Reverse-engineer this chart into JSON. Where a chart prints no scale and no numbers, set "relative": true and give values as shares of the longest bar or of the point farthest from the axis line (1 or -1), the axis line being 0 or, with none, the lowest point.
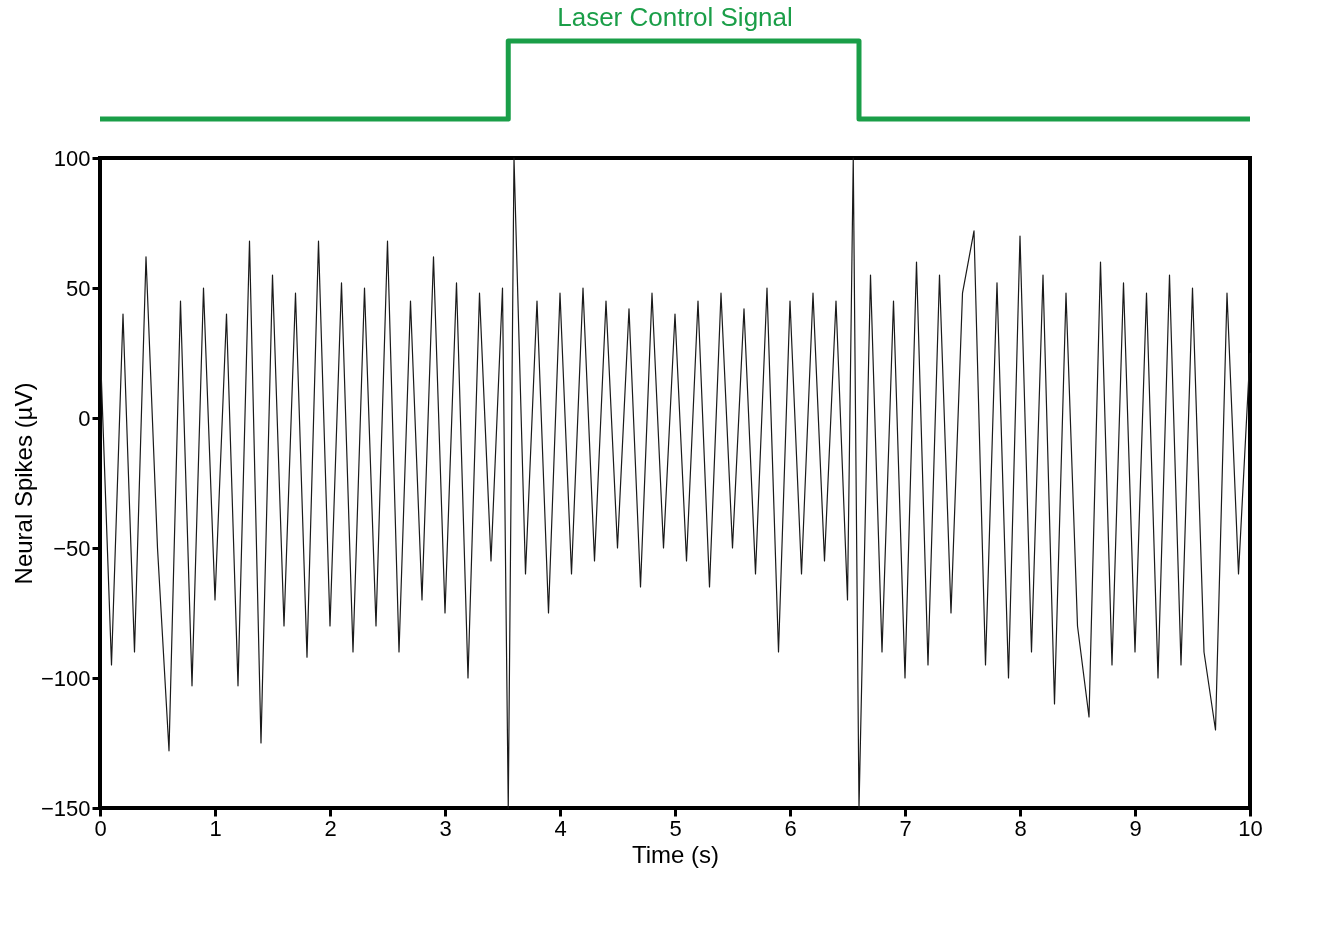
{
  "chart_data": [
    {
      "type": "step",
      "title": "Laser Control Signal",
      "relative": true,
      "xlim": [
        0,
        10
      ],
      "series": [
        {
          "color": "#1a9e48",
          "x": [
            0,
            3.55,
            6.6,
            10
          ],
          "values": [
            0,
            1,
            0,
            0
          ]
        }
      ]
    },
    {
      "type": "line",
      "xlabel": "Time (s)",
      "ylabel": "Neural Spikes (µV)",
      "xlim": [
        0,
        10
      ],
      "ylim": [
        -150,
        100
      ],
      "xticks": [
        0,
        1,
        2,
        3,
        4,
        5,
        6,
        7,
        8,
        9,
        10
      ],
      "yticks": [
        -150,
        -100,
        -50,
        0,
        50,
        100
      ],
      "grid": false,
      "series": [
        {
          "color": "#1a1a1a",
          "x": [
            0.0,
            0.1,
            0.2,
            0.3,
            0.4,
            0.5,
            0.6,
            0.7,
            0.8,
            0.9,
            1.0,
            1.1,
            1.2,
            1.3,
            1.4,
            1.5,
            1.6,
            1.7,
            1.8,
            1.9,
            2.0,
            2.1,
            2.2,
            2.3,
            2.4,
            2.5,
            2.6,
            2.7,
            2.8,
            2.9,
            3.0,
            3.1,
            3.2,
            3.3,
            3.4,
            3.5,
            3.55,
            3.6,
            3.7,
            3.8,
            3.9,
            4.0,
            4.1,
            4.2,
            4.3,
            4.4,
            4.5,
            4.6,
            4.7,
            4.8,
            4.9,
            5.0,
            5.1,
            5.2,
            5.3,
            5.4,
            5.5,
            5.6,
            5.7,
            5.8,
            5.9,
            6.0,
            6.1,
            6.2,
            6.3,
            6.4,
            6.5,
            6.55,
            6.6,
            6.7,
            6.8,
            6.9,
            7.0,
            7.1,
            7.2,
            7.3,
            7.4,
            7.5,
            7.6,
            7.7,
            7.8,
            7.9,
            8.0,
            8.1,
            8.2,
            8.3,
            8.4,
            8.5,
            8.6,
            8.7,
            8.8,
            8.9,
            9.0,
            9.1,
            9.2,
            9.3,
            9.4,
            9.5,
            9.6,
            9.7,
            9.8,
            9.9,
            10.0
          ],
          "values": [
            30,
            -95,
            40,
            -90,
            62,
            -50,
            -128,
            45,
            -103,
            50,
            -70,
            40,
            -103,
            68,
            -125,
            55,
            -80,
            48,
            -92,
            68,
            -80,
            52,
            -90,
            50,
            -80,
            68,
            -90,
            45,
            -70,
            62,
            -75,
            52,
            -100,
            48,
            -55,
            50,
            -150,
            100,
            -60,
            45,
            -75,
            48,
            -60,
            50,
            -55,
            45,
            -50,
            42,
            -65,
            48,
            -50,
            40,
            -55,
            45,
            -65,
            48,
            -50,
            42,
            -60,
            50,
            -90,
            45,
            -60,
            48,
            -55,
            45,
            -70,
            100,
            -150,
            55,
            -90,
            45,
            -100,
            60,
            -95,
            55,
            -75,
            48,
            72,
            -95,
            52,
            -100,
            70,
            -90,
            55,
            -110,
            48,
            -80,
            -115,
            60,
            -95,
            52,
            -90,
            48,
            -100,
            55,
            -95,
            50,
            -90,
            -120,
            48,
            -60,
            25
          ]
        }
      ]
    }
  ]
}
